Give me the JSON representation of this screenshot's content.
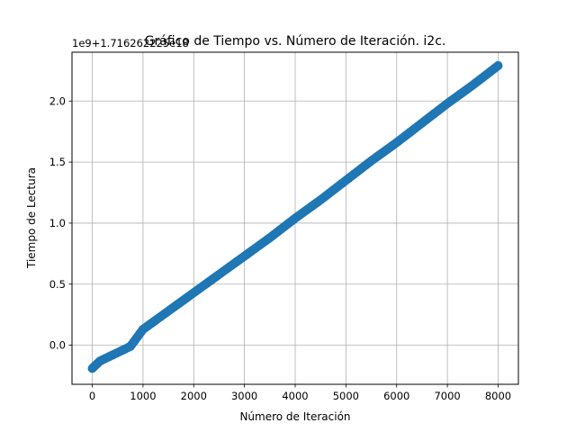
{
  "chart_data": {
    "type": "scatter",
    "title": "Gráfico de Tiempo vs. Número de Iteración. i2c.",
    "xlabel": "Número de Iteración",
    "ylabel": "Tiempo de Lectura",
    "offset_label": "1e9+1.716262225e18",
    "xlim": [
      -400,
      8400
    ],
    "ylim": [
      -0.32,
      2.4
    ],
    "xticks": [
      0,
      1000,
      2000,
      3000,
      4000,
      5000,
      6000,
      7000,
      8000
    ],
    "yticks": [
      0.0,
      0.5,
      1.0,
      1.5,
      2.0
    ],
    "grid": true,
    "marker_color": "#1f77b4",
    "series": [
      {
        "x": [
          0,
          50,
          100,
          150,
          200,
          300,
          400,
          500,
          750,
          1000,
          1500,
          2000,
          2500,
          3000,
          3500,
          4000,
          4500,
          5000,
          5500,
          6000,
          6500,
          7000,
          7500,
          8000
        ],
        "y": [
          -0.19,
          -0.17,
          -0.15,
          -0.13,
          -0.12,
          -0.1,
          -0.08,
          -0.06,
          -0.01,
          0.13,
          0.28,
          0.43,
          0.58,
          0.73,
          0.88,
          1.04,
          1.19,
          1.35,
          1.51,
          1.66,
          1.82,
          1.98,
          2.13,
          2.29
        ]
      }
    ]
  }
}
